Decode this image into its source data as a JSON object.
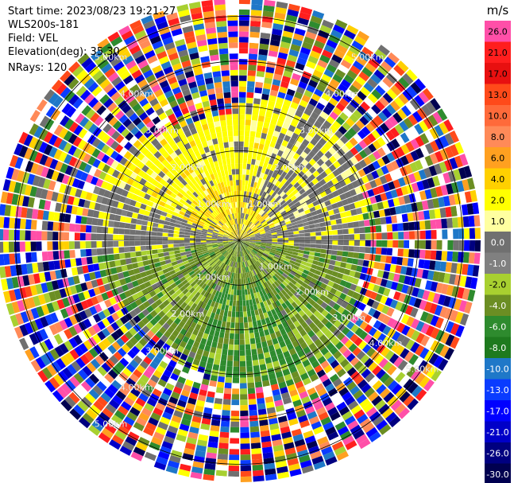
{
  "header": {
    "start_time": "Start time: 2023/08/23 19:21:27",
    "instrument": "WLS200s-181",
    "field": "Field: VEL",
    "elevation": "Elevation(deg): 35.30",
    "nrays": "NRays: 120"
  },
  "chart_data": {
    "type": "heatmap",
    "projection": "polar-ppi",
    "n_rays": 120,
    "range_rings_km": [
      1.0,
      2.0,
      3.0,
      4.0,
      5.0
    ],
    "max_range_km": 5.4,
    "ring_labels": [
      {
        "text": "1.00km",
        "ring": 1
      },
      {
        "text": "2.00km",
        "ring": 2
      },
      {
        "text": "3.00km",
        "ring": 3
      },
      {
        "text": "4.00km",
        "ring": 4
      },
      {
        "text": "5.00km",
        "ring": 5
      }
    ],
    "colorbar": {
      "unit": "m/s",
      "ticks": [
        "26.0",
        "21.0",
        "17.0",
        "13.0",
        "10.0",
        "8.0",
        "6.0",
        "4.0",
        "2.0",
        "1.0",
        "0.0",
        "-1.0",
        "-2.0",
        "-4.0",
        "-6.0",
        "-8.0",
        "-10.0",
        "-13.0",
        "-17.0",
        "-21.0",
        "-26.0",
        "-30.0"
      ],
      "colors": [
        "#ff4fa8",
        "#ff1e1e",
        "#e81010",
        "#ff4a1a",
        "#ff6a3a",
        "#ff8a58",
        "#ffa020",
        "#ffd000",
        "#ffff00",
        "#ffffa0",
        "#707070",
        "#808080",
        "#a8d030",
        "#6b8e23",
        "#2e8b2e",
        "#1e7a1e",
        "#1f78c8",
        "#0a3cff",
        "#0000ff",
        "#0000c8",
        "#000080",
        "#000050"
      ]
    }
  }
}
